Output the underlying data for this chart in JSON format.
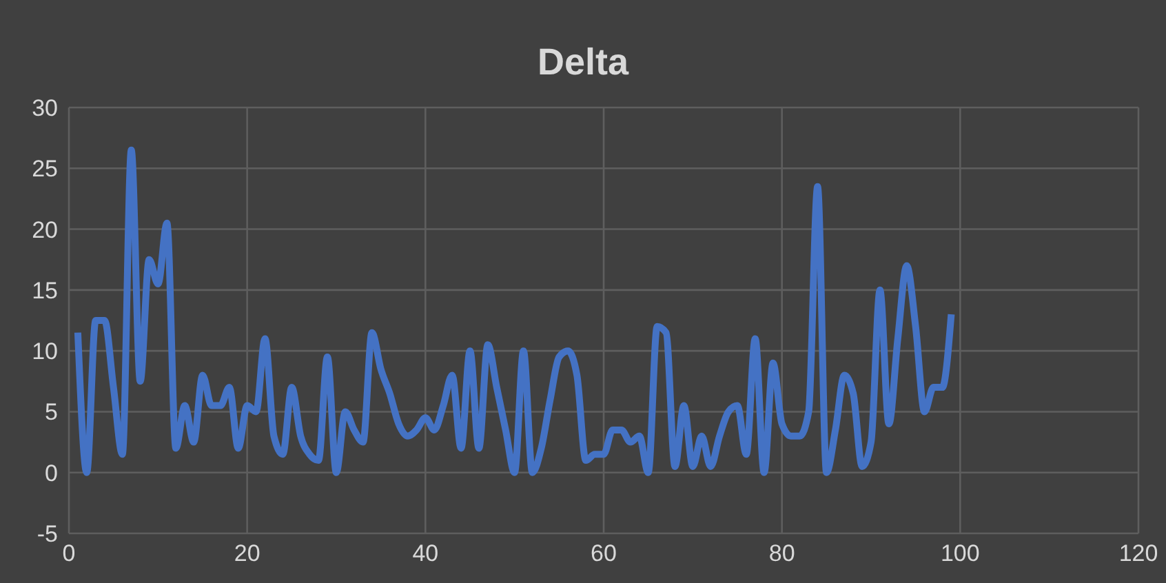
{
  "chart_data": {
    "type": "line",
    "title": "Delta",
    "x": [
      1,
      2,
      3,
      4,
      5,
      6,
      7,
      8,
      9,
      10,
      11,
      12,
      13,
      14,
      15,
      16,
      17,
      18,
      19,
      20,
      21,
      22,
      23,
      24,
      25,
      26,
      27,
      28,
      29,
      30,
      31,
      32,
      33,
      34,
      35,
      36,
      37,
      38,
      39,
      40,
      41,
      42,
      43,
      44,
      45,
      46,
      47,
      48,
      49,
      50,
      51,
      52,
      53,
      54,
      55,
      56,
      57,
      58,
      59,
      60,
      61,
      62,
      63,
      64,
      65,
      66,
      67,
      68,
      69,
      70,
      71,
      72,
      73,
      74,
      75,
      76,
      77,
      78,
      79,
      80,
      81,
      82,
      83,
      84,
      85,
      86,
      87,
      88,
      89,
      90,
      91,
      92,
      93,
      94,
      95,
      96,
      97,
      98,
      99
    ],
    "series": [
      {
        "color": "#4472c4",
        "values": [
          11.5,
          0,
          12.5,
          12.5,
          7,
          1.5,
          26.5,
          7.5,
          17.5,
          15.5,
          20.5,
          2,
          5.5,
          2.5,
          8,
          5.5,
          5.5,
          7,
          2,
          5.5,
          5,
          11,
          3,
          1.5,
          7,
          3,
          1.5,
          1,
          9.5,
          0,
          5,
          3.5,
          2.5,
          11.5,
          8.5,
          6.5,
          4,
          3,
          3.5,
          4.5,
          3.5,
          5.5,
          8,
          2,
          10,
          2,
          10.5,
          7,
          3.5,
          0,
          10,
          0,
          2,
          6,
          9.5,
          10,
          8,
          1,
          1.5,
          1.5,
          3.5,
          3.5,
          2.5,
          3,
          0,
          12,
          11.5,
          0.5,
          5.5,
          0.5,
          3,
          0.5,
          3,
          5,
          5.5,
          1.5,
          11,
          0,
          9,
          4,
          3,
          3,
          5,
          23.5,
          0,
          3.5,
          8,
          6.5,
          0.5,
          2.5,
          15,
          4,
          11,
          17,
          12,
          5,
          7,
          7,
          13
        ]
      }
    ],
    "xlim": [
      0,
      120
    ],
    "xticks": [
      0,
      20,
      40,
      60,
      80,
      100,
      120
    ],
    "ylim": [
      -5,
      30
    ],
    "yticks": [
      -5,
      0,
      5,
      10,
      15,
      20,
      25,
      30
    ],
    "grid": true,
    "legend": false,
    "marker": "none",
    "line_style": "solid"
  }
}
